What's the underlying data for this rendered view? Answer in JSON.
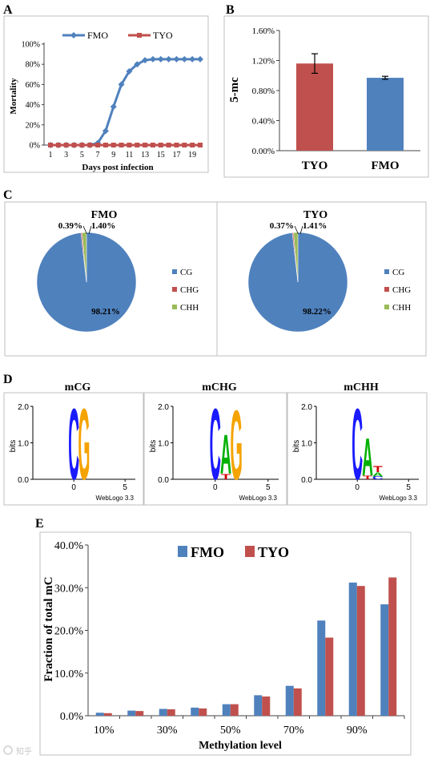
{
  "colors": {
    "blue": "#4f81bd",
    "red": "#c0504d",
    "green": "#9bbb59",
    "logo_c": "#1a1aff",
    "logo_g": "#f5a300",
    "logo_a": "#00b000",
    "logo_t": "#d00000"
  },
  "panels": {
    "A": "A",
    "B": "B",
    "C": "C",
    "D": "D",
    "E": "E"
  },
  "chart_data": [
    {
      "panel": "A",
      "type": "line",
      "xlabel": "Days post infection",
      "ylabel": "Mortality",
      "x": [
        1,
        2,
        3,
        4,
        5,
        6,
        7,
        8,
        9,
        10,
        11,
        12,
        13,
        14,
        15,
        16,
        17,
        18,
        19,
        20
      ],
      "x_tick_labels": [
        "1",
        "3",
        "5",
        "7",
        "9",
        "11",
        "13",
        "15",
        "17",
        "19"
      ],
      "y_tick_labels": [
        "0%",
        "20%",
        "40%",
        "60%",
        "80%",
        "100%"
      ],
      "ylim": [
        0,
        100
      ],
      "legend_position": "top",
      "series": [
        {
          "name": "FMO",
          "values": [
            0,
            0,
            0,
            0,
            0,
            0,
            2,
            14,
            38,
            60,
            73,
            80,
            84,
            85,
            85,
            85,
            85,
            85,
            85,
            85
          ]
        },
        {
          "name": "TYO",
          "values": [
            0,
            0,
            0,
            0,
            0,
            0,
            0,
            0,
            0,
            0,
            0,
            0,
            0,
            0,
            0,
            0,
            0,
            0,
            0,
            0
          ]
        }
      ]
    },
    {
      "panel": "B",
      "type": "bar",
      "ylabel": "5-mc",
      "categories": [
        "TYO",
        "FMO"
      ],
      "values": [
        1.16,
        0.97
      ],
      "error": [
        0.13,
        0.02
      ],
      "y_tick_labels": [
        "0.00%",
        "0.40%",
        "0.80%",
        "1.20%",
        "1.60%"
      ],
      "ylim": [
        0,
        1.6
      ]
    },
    {
      "panel": "C",
      "type": "pie",
      "pies": [
        {
          "title": "FMO",
          "slices": [
            {
              "name": "CG",
              "value": 98.21,
              "label": "98.21%"
            },
            {
              "name": "CHG",
              "value": 0.39,
              "label": "0.39%"
            },
            {
              "name": "CHH",
              "value": 1.4,
              "label": "1.40%"
            }
          ]
        },
        {
          "title": "TYO",
          "slices": [
            {
              "name": "CG",
              "value": 98.22,
              "label": "98.22%"
            },
            {
              "name": "CHG",
              "value": 0.37,
              "label": "0.37%"
            },
            {
              "name": "CHH",
              "value": 1.41,
              "label": "1.41%"
            }
          ]
        }
      ],
      "legend": [
        "CG",
        "CHG",
        "CHH"
      ],
      "legend_position": "right"
    },
    {
      "panel": "D",
      "type": "logo",
      "ylabel": "bits",
      "y_tick_labels": [
        "0.0",
        "1.0",
        "2.0"
      ],
      "x_tick_labels": [
        "0",
        "5"
      ],
      "credit": "WebLogo 3.3",
      "logos": [
        {
          "title": "mCG",
          "letters": [
            {
              "pos": 0,
              "stack": [
                {
                  "char": "C",
                  "bits": 2.0
                }
              ]
            },
            {
              "pos": 1,
              "stack": [
                {
                  "char": "G",
                  "bits": 2.0
                }
              ]
            }
          ]
        },
        {
          "title": "mCHG",
          "letters": [
            {
              "pos": 0,
              "stack": [
                {
                  "char": "C",
                  "bits": 2.0
                }
              ]
            },
            {
              "pos": 1,
              "stack": [
                {
                  "char": "T",
                  "bits": 0.15
                },
                {
                  "char": "A",
                  "bits": 1.1
                }
              ]
            },
            {
              "pos": 2,
              "stack": [
                {
                  "char": "G",
                  "bits": 1.95
                }
              ]
            }
          ]
        },
        {
          "title": "mCHH",
          "letters": [
            {
              "pos": 0,
              "stack": [
                {
                  "char": "C",
                  "bits": 2.0
                }
              ]
            },
            {
              "pos": 1,
              "stack": [
                {
                  "char": "T",
                  "bits": 0.1
                },
                {
                  "char": "A",
                  "bits": 1.05
                }
              ]
            },
            {
              "pos": 2,
              "stack": [
                {
                  "char": "C",
                  "bits": 0.08
                },
                {
                  "char": "A",
                  "bits": 0.12
                },
                {
                  "char": "T",
                  "bits": 0.18
                }
              ]
            }
          ]
        }
      ]
    },
    {
      "panel": "E",
      "type": "bar",
      "xlabel": "Methylation level",
      "ylabel": "Fraction of total mC",
      "x_tick_labels": [
        "10%",
        "30%",
        "50%",
        "70%",
        "90%"
      ],
      "categories": [
        "10%",
        "20%",
        "30%",
        "40%",
        "50%",
        "60%",
        "70%",
        "80%",
        "90%",
        "100%"
      ],
      "y_tick_labels": [
        "0.0%",
        "10.0%",
        "20.0%",
        "30.0%",
        "40.0%"
      ],
      "ylim": [
        0,
        40
      ],
      "legend_position": "top",
      "series": [
        {
          "name": "FMO",
          "values": [
            0.7,
            1.2,
            1.6,
            1.9,
            2.7,
            4.8,
            7.0,
            22.3,
            31.2,
            26.1
          ]
        },
        {
          "name": "TYO",
          "values": [
            0.6,
            1.1,
            1.5,
            1.7,
            2.7,
            4.5,
            6.4,
            18.3,
            30.4,
            32.4
          ]
        }
      ]
    }
  ],
  "watermark": "知乎"
}
